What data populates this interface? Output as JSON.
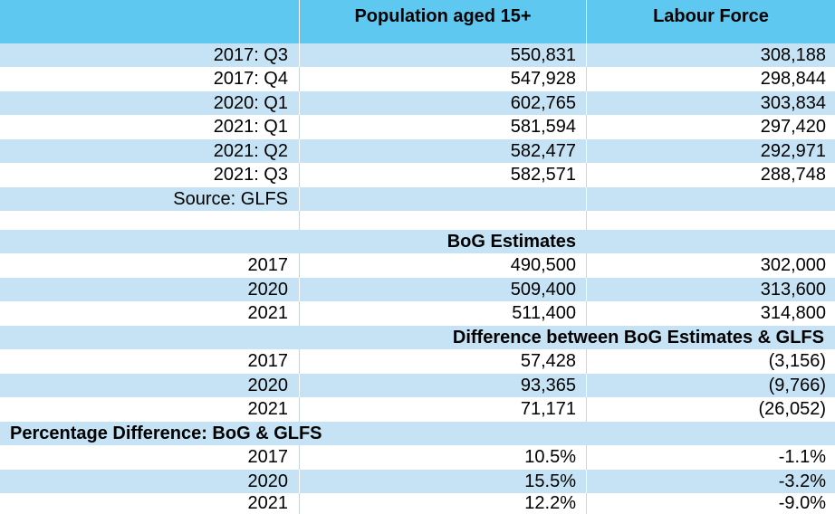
{
  "header": {
    "col2": "Population aged 15+",
    "col3": "Labour Force"
  },
  "glfs_rows": [
    {
      "label": "2017: Q3",
      "population": "550,831",
      "labour": "308,188"
    },
    {
      "label": "2017: Q4",
      "population": "547,928",
      "labour": "298,844"
    },
    {
      "label": "2020: Q1",
      "population": "602,765",
      "labour": "303,834"
    },
    {
      "label": "2021: Q1",
      "population": "581,594",
      "labour": "297,420"
    },
    {
      "label": "2021: Q2",
      "population": "582,477",
      "labour": "292,971"
    },
    {
      "label": "2021: Q3",
      "population": "582,571",
      "labour": "288,748"
    }
  ],
  "source": "Source: GLFS",
  "bog_title": "BoG Estimates",
  "bog_rows": [
    {
      "label": "2017",
      "population": "490,500",
      "labour": "302,000"
    },
    {
      "label": "2020",
      "population": "509,400",
      "labour": "313,600"
    },
    {
      "label": "2021",
      "population": "511,400",
      "labour": "314,800"
    }
  ],
  "diff_title": "Difference between BoG Estimates & GLFS",
  "diff_rows": [
    {
      "label": "2017",
      "population": "57,428",
      "labour": "(3,156)"
    },
    {
      "label": "2020",
      "population": "93,365",
      "labour": "(9,766)"
    },
    {
      "label": "2021",
      "population": "71,171",
      "labour": "(26,052)"
    }
  ],
  "pct_title": "Percentage Difference: BoG & GLFS",
  "pct_rows": [
    {
      "label": "2017",
      "population": "10.5%",
      "labour": "-1.1%"
    },
    {
      "label": "2020",
      "population": "15.5%",
      "labour": "-3.2%"
    },
    {
      "label": "2021",
      "population": "12.2%",
      "labour": "-9.0%"
    }
  ],
  "colors": {
    "header": "#5ec8f1",
    "band": "#c5e3f4",
    "white": "#ffffff"
  }
}
